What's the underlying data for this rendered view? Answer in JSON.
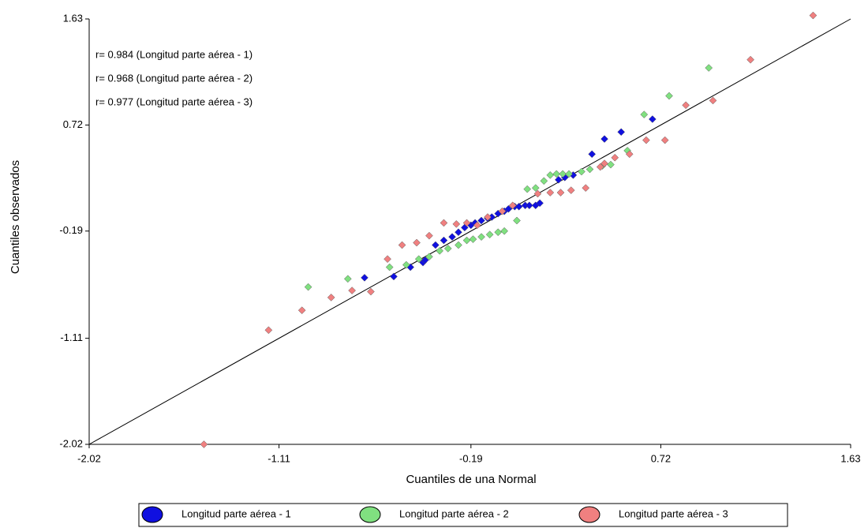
{
  "chart_data": {
    "type": "scatter",
    "x_label": "Cuantiles de una Normal",
    "y_label": "Cuantiles observados",
    "annotations": [
      "r= 0.984 (Longitud parte aérea - 1)",
      "r= 0.968 (Longitud parte aérea - 2)",
      "r= 0.977 (Longitud parte aérea - 3)"
    ],
    "xlim": [
      -2.02,
      1.63
    ],
    "ylim": [
      -2.02,
      1.63
    ],
    "xticks": [
      -2.02,
      -1.11,
      -0.19,
      0.72,
      1.63
    ],
    "yticks": [
      -2.02,
      -1.11,
      -0.19,
      0.72,
      1.63
    ],
    "reference_line": true,
    "legend": "bottom",
    "series": [
      {
        "name": "Longitud parte aérea - 1",
        "color": "#1010e0",
        "x": [
          -0.7,
          -0.56,
          -0.48,
          -0.42,
          -0.41,
          -0.36,
          -0.32,
          -0.28,
          -0.25,
          -0.22,
          -0.19,
          -0.17,
          -0.14,
          -0.11,
          -0.09,
          -0.06,
          -0.03,
          -0.01,
          0.02,
          0.04,
          0.07,
          0.09,
          0.12,
          0.14,
          0.23,
          0.26,
          0.3,
          0.39,
          0.45,
          0.53,
          0.68
        ],
        "values": [
          -0.59,
          -0.58,
          -0.5,
          -0.46,
          -0.44,
          -0.31,
          -0.27,
          -0.24,
          -0.2,
          -0.16,
          -0.14,
          -0.12,
          -0.1,
          -0.08,
          -0.07,
          -0.04,
          -0.02,
          0.0,
          0.02,
          0.02,
          0.03,
          0.03,
          0.03,
          0.05,
          0.25,
          0.27,
          0.29,
          0.47,
          0.6,
          0.66,
          0.77
        ]
      },
      {
        "name": "Longitud parte aérea - 2",
        "color": "#80e080",
        "x": [
          -0.97,
          -0.78,
          -0.58,
          -0.5,
          -0.44,
          -0.39,
          -0.34,
          -0.3,
          -0.25,
          -0.21,
          -0.18,
          -0.14,
          -0.1,
          -0.06,
          -0.03,
          0.03,
          0.08,
          0.12,
          0.16,
          0.19,
          0.22,
          0.25,
          0.28,
          0.34,
          0.38,
          0.44,
          0.48,
          0.56,
          0.64,
          0.76,
          0.95
        ],
        "values": [
          -0.67,
          -0.6,
          -0.5,
          -0.48,
          -0.43,
          -0.41,
          -0.36,
          -0.34,
          -0.31,
          -0.27,
          -0.26,
          -0.24,
          -0.22,
          -0.2,
          -0.19,
          -0.1,
          0.17,
          0.18,
          0.24,
          0.29,
          0.3,
          0.3,
          0.3,
          0.32,
          0.34,
          0.37,
          0.38,
          0.5,
          0.81,
          0.97,
          1.21
        ]
      },
      {
        "name": "Longitud parte aérea - 3",
        "color": "#f08080",
        "x": [
          -1.47,
          -1.16,
          -1.0,
          -0.86,
          -0.76,
          -0.67,
          -0.59,
          -0.52,
          -0.45,
          -0.39,
          -0.32,
          -0.26,
          -0.21,
          -0.16,
          -0.11,
          -0.04,
          0.01,
          0.13,
          0.19,
          0.24,
          0.29,
          0.36,
          0.43,
          0.45,
          0.5,
          0.57,
          0.65,
          0.74,
          0.84,
          0.97,
          1.15,
          1.45
        ],
        "values": [
          -2.02,
          -1.04,
          -0.87,
          -0.76,
          -0.7,
          -0.71,
          -0.43,
          -0.31,
          -0.29,
          -0.23,
          -0.12,
          -0.13,
          -0.12,
          -0.14,
          -0.07,
          -0.02,
          0.03,
          0.13,
          0.14,
          0.14,
          0.16,
          0.18,
          0.36,
          0.39,
          0.44,
          0.47,
          0.59,
          0.59,
          0.89,
          0.93,
          1.28,
          1.66
        ]
      }
    ]
  }
}
